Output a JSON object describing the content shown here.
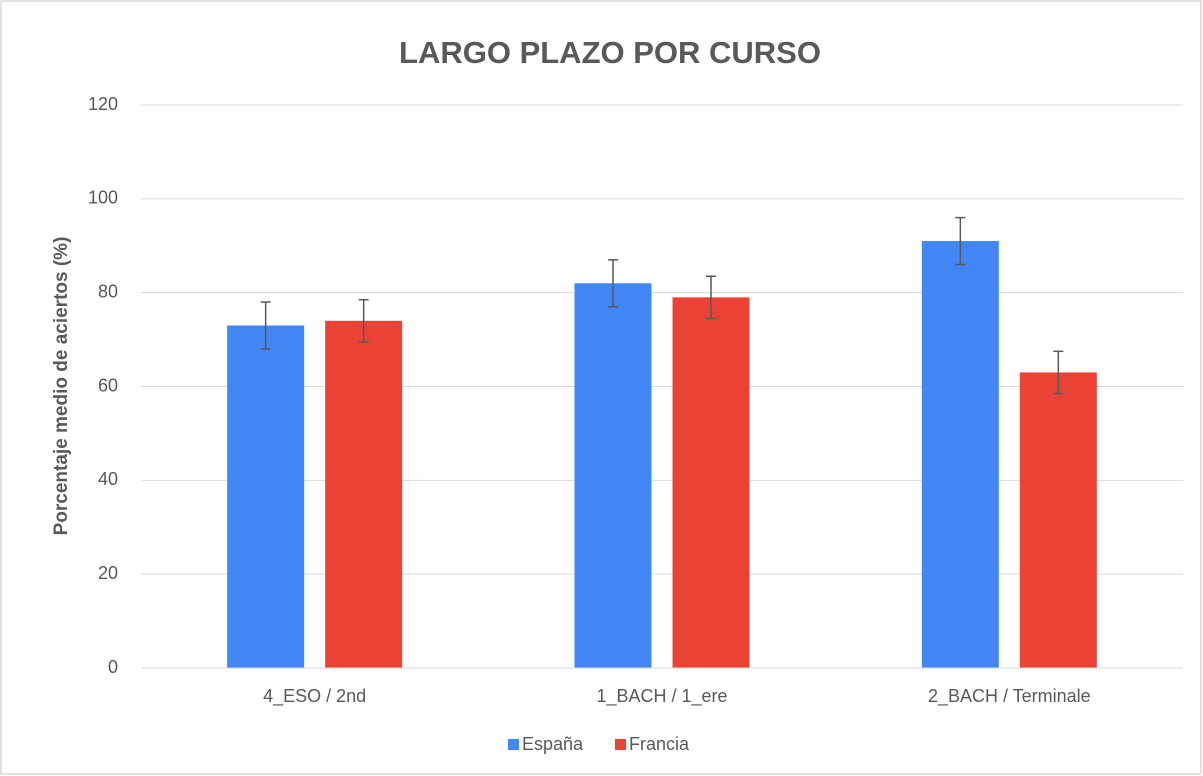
{
  "chart_data": {
    "type": "bar",
    "title": "LARGO PLAZO POR CURSO",
    "y_label": "Porcentaje medio de aciertos  (%)",
    "categories": [
      "4_ESO / 2nd",
      "1_BACH / 1_ere",
      "2_BACH / Terminale"
    ],
    "series": [
      {
        "name": "España",
        "color": "#4285f4",
        "values": [
          73,
          82,
          91
        ],
        "errors": [
          5,
          5,
          5
        ]
      },
      {
        "name": "Francia",
        "color": "#ea4335",
        "values": [
          74,
          79,
          63
        ],
        "errors": [
          4.5,
          4.5,
          4.5
        ]
      }
    ],
    "ylim": [
      0,
      120
    ],
    "yticks": [
      0,
      20,
      40,
      60,
      80,
      100,
      120
    ],
    "grid": true,
    "legend": "bottom"
  }
}
